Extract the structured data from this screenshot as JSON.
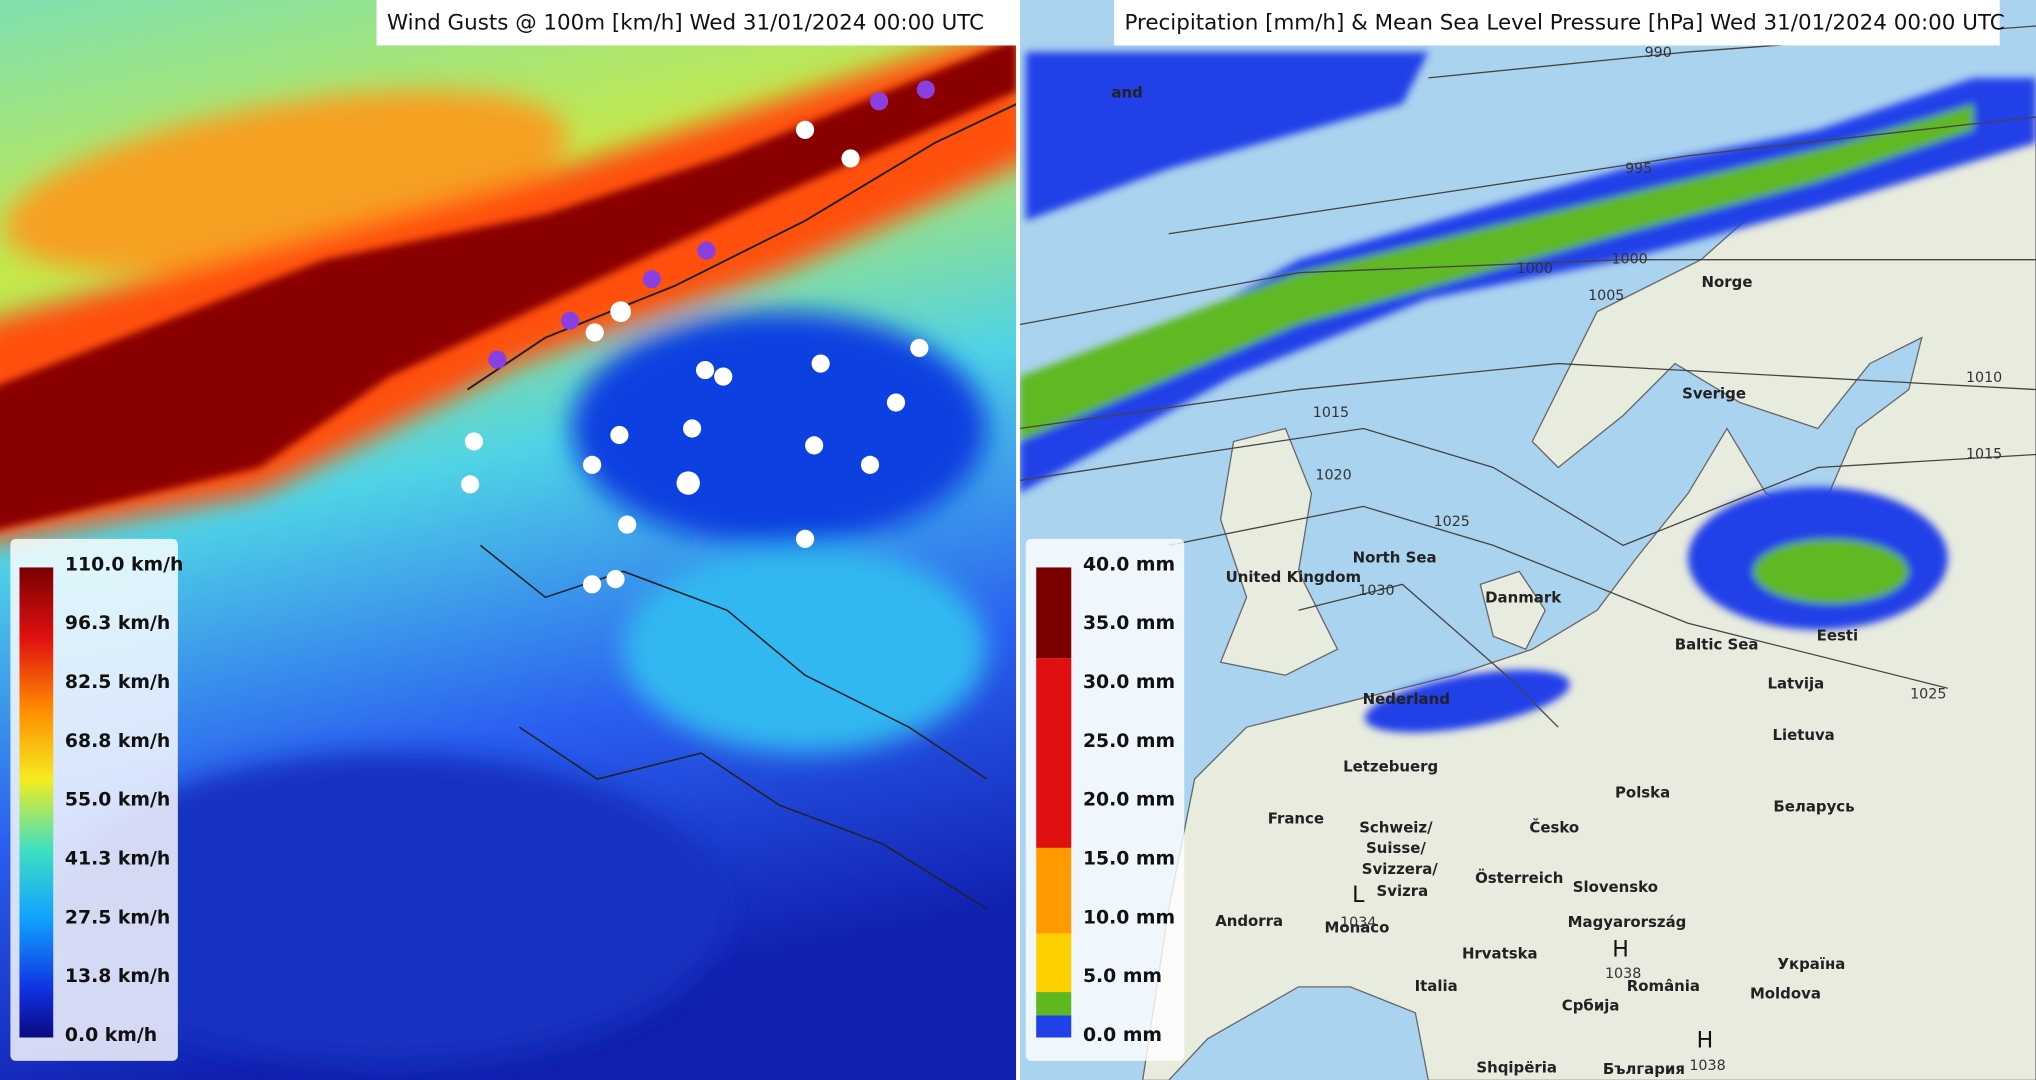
{
  "panels": [
    {
      "title": "Wind Gusts @ 100m [km/h] Wed  31/01/2024  00:00 UTC",
      "legend": [
        "110.0 km/h",
        "96.3 km/h",
        "82.5 km/h",
        "68.8 km/h",
        "55.0 km/h",
        "41.3 km/h",
        "27.5 km/h",
        "13.8 km/h",
        "0.0 km/h"
      ]
    },
    {
      "title": "Precipitation [mm/h] & Mean Sea Level Pressure [hPa] Wed  31/01/2024  00:00 UTC",
      "legend": [
        "40.0 mm",
        "35.0 mm",
        "30.0 mm",
        "25.0 mm",
        "20.0 mm",
        "15.0 mm",
        "10.0 mm",
        "5.0 mm",
        "0.0 mm"
      ],
      "places": [
        "and",
        "Norge",
        "Sverige",
        "United Kingdom",
        "North Sea",
        "Danmark",
        "Baltic Sea",
        "Eesti",
        "Latvija",
        "Lietuva",
        "Nederland",
        "Letzebuerg",
        "Polska",
        "Беларусь",
        "France",
        "Česko",
        "Schweiz/",
        "Suisse/",
        "Svizzera/",
        "Svizra",
        "Österreich",
        "Slovensko",
        "Magyarország",
        "Andorra",
        "Monaco",
        "Hrvatska",
        "Україна",
        "Italia",
        "România",
        "Moldova",
        "Србија",
        "Shqipëria",
        "България"
      ],
      "isobars": [
        "990",
        "995",
        "1000",
        "1000",
        "1005",
        "1010",
        "1015",
        "1015",
        "1020",
        "1025",
        "1030",
        "1025",
        "1034",
        "1038",
        "1038"
      ],
      "centers": [
        "L",
        "H",
        "H"
      ]
    }
  ]
}
